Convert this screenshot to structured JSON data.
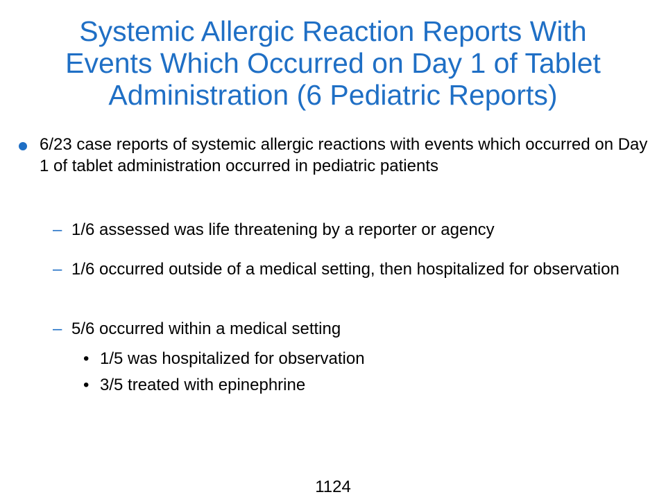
{
  "slide": {
    "title_lines": [
      "Systemic Allergic Reaction Reports With",
      "Events Which Occurred on Day 1 of Tablet",
      "Administration (6 Pediatric Reports)"
    ],
    "colors": {
      "accent": "#1f6fc5",
      "text": "#000000",
      "background": "#ffffff"
    },
    "bullet_main": "6/23 case reports of systemic allergic reactions with events which occurred on Day 1 of tablet administration occurred in pediatric patients",
    "dash_glyph": "–",
    "dot_glyph": "•",
    "sub_bullets": [
      "1/6 assessed  was life threatening by a reporter or agency",
      "1/6 occurred outside of a medical setting, then hospitalized for observation",
      "5/6 occurred within a medical setting"
    ],
    "sub_sub_bullets": [
      "1/5 was hospitalized for observation",
      "3/5 treated with epinephrine"
    ],
    "page_number": "1124"
  }
}
